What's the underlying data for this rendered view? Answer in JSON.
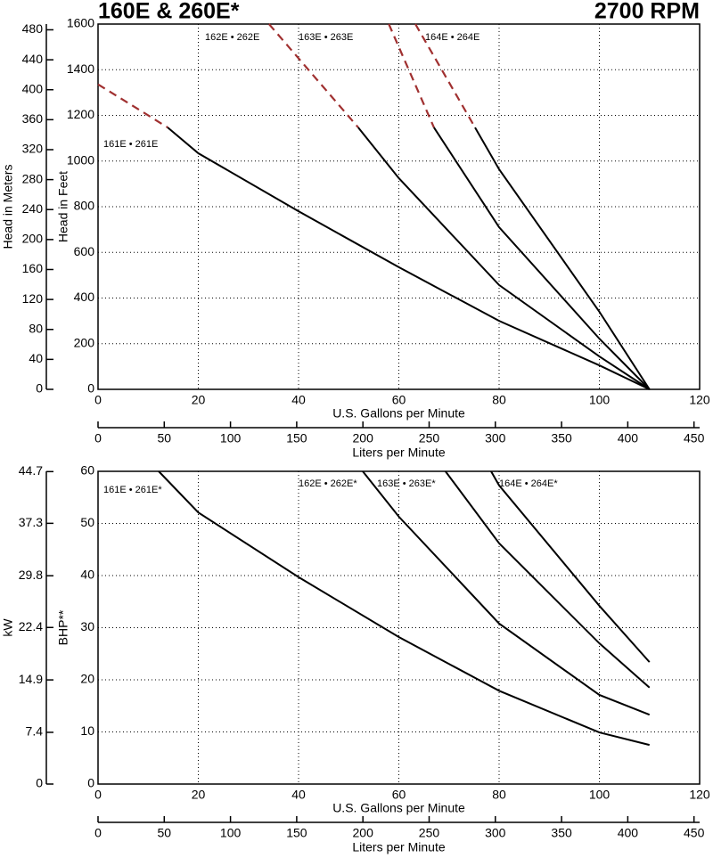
{
  "chart_data": [
    {
      "type": "line",
      "title": "160E & 260E*",
      "subtitle": "2700 RPM",
      "xlabel": "U.S. Gallons per Minute",
      "x2label": "Liters per Minute",
      "ylabel": "Head in Feet",
      "y2label": "Head in Meters",
      "xlim": [
        0,
        120
      ],
      "xticks": [
        0,
        20,
        40,
        60,
        80,
        100,
        120
      ],
      "x2lim": [
        0,
        454.25
      ],
      "x2ticks": [
        0,
        50,
        100,
        150,
        200,
        250,
        300,
        350,
        400,
        450
      ],
      "ylim": [
        0,
        1600
      ],
      "yticks": [
        0,
        200,
        400,
        600,
        800,
        1000,
        1200,
        1400,
        1600
      ],
      "y2lim": [
        0,
        487.68
      ],
      "y2ticks": [
        0,
        40,
        80,
        120,
        160,
        200,
        240,
        280,
        320,
        360,
        400,
        440,
        480
      ],
      "grid": true,
      "series": [
        {
          "name": "161E • 261E",
          "color": "#000000",
          "x": [
            13.9,
            20,
            40,
            60,
            80,
            100,
            110
          ],
          "values": [
            1147,
            1034,
            780,
            535,
            300,
            105,
            0
          ],
          "dashed": {
            "color": "#a03030",
            "x": [
              0,
              13.9
            ],
            "values": [
              1336,
              1147
            ]
          }
        },
        {
          "name": "162E • 262E",
          "color": "#000000",
          "x": [
            51.9,
            60,
            80,
            100,
            110
          ],
          "values": [
            1147,
            925,
            457,
            144,
            0
          ],
          "dashed": {
            "color": "#a03030",
            "x": [
              34.1,
              51.9
            ],
            "values": [
              1600,
              1147
            ]
          }
        },
        {
          "name": "163E • 263E",
          "color": "#000000",
          "x": [
            67,
            80,
            100,
            110
          ],
          "values": [
            1147,
            710,
            222,
            0
          ],
          "dashed": {
            "color": "#a03030",
            "x": [
              58,
              67
            ],
            "values": [
              1600,
              1147
            ]
          }
        },
        {
          "name": "164E • 264E",
          "color": "#000000",
          "x": [
            75.2,
            80,
            100,
            110
          ],
          "values": [
            1147,
            964,
            340,
            0
          ],
          "dashed": {
            "color": "#a03030",
            "x": [
              63.3,
              75.2
            ],
            "values": [
              1600,
              1147
            ]
          }
        }
      ]
    },
    {
      "type": "line",
      "xlabel": "U.S. Gallons per Minute",
      "x2label": "Liters per Minute",
      "ylabel": "BHP**",
      "y2label": "kW",
      "xlim": [
        0,
        120
      ],
      "xticks": [
        0,
        20,
        40,
        60,
        80,
        100,
        120
      ],
      "x2lim": [
        0,
        454.25
      ],
      "x2ticks": [
        0,
        50,
        100,
        150,
        200,
        250,
        300,
        350,
        400,
        450
      ],
      "ylim": [
        0,
        60
      ],
      "yticks": [
        0,
        10,
        20,
        30,
        40,
        50,
        60
      ],
      "y2lim": [
        0,
        44.74
      ],
      "y2ticks": [
        0,
        7.4,
        14.9,
        22.4,
        29.8,
        37.3,
        44.7
      ],
      "grid": true,
      "series": [
        {
          "name": "161E • 261E*",
          "color": "#000000",
          "x": [
            12.1,
            20,
            40,
            60,
            80,
            100,
            110
          ],
          "values": [
            60,
            52.1,
            39.7,
            28.2,
            17.9,
            9.9,
            7.5
          ]
        },
        {
          "name": "162E • 262E*",
          "color": "#000000",
          "x": [
            52.8,
            60,
            80,
            100,
            110
          ],
          "values": [
            60,
            51.3,
            30.8,
            17.1,
            13.3
          ]
        },
        {
          "name": "163E • 263E*",
          "color": "#000000",
          "x": [
            69.3,
            80,
            100,
            110
          ],
          "values": [
            60,
            46.2,
            27,
            18.5
          ]
        },
        {
          "name": "164E • 264E*",
          "color": "#000000",
          "x": [
            78.4,
            80,
            100,
            110
          ],
          "values": [
            60,
            57.3,
            34.2,
            23.4
          ]
        }
      ]
    }
  ]
}
